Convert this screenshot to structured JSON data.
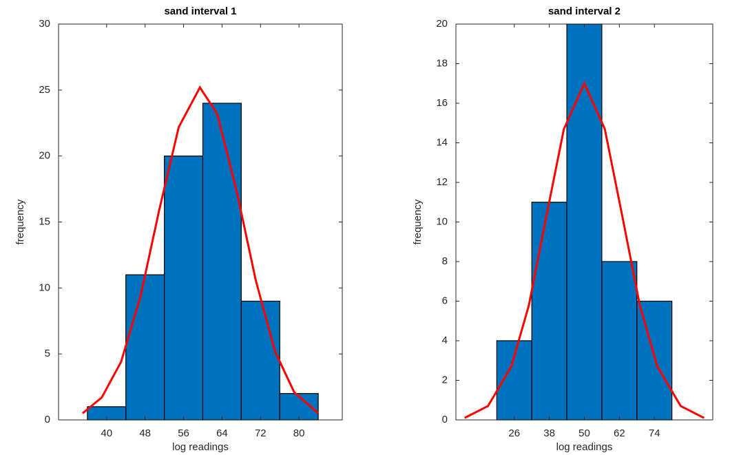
{
  "chart_data": [
    {
      "type": "histogram",
      "title": "sand interval 1",
      "x_label": "log readings",
      "y_label": "frequency",
      "bins": [
        36,
        44,
        52,
        60,
        68,
        76,
        84
      ],
      "values": [
        1,
        11,
        20,
        24,
        9,
        2
      ],
      "color": "#0072bd",
      "xlim": [
        30,
        89
      ],
      "ylim": [
        0,
        30
      ],
      "xticks": [
        40,
        48,
        56,
        64,
        72,
        80
      ],
      "yticks": [
        0,
        5,
        10,
        15,
        20,
        25,
        30
      ],
      "curve": {
        "color": "#ff0000",
        "x": [
          35,
          39,
          43,
          47,
          51,
          55,
          59.4,
          63,
          67,
          71,
          75,
          79,
          84
        ],
        "y": [
          0.5,
          1.7,
          4.4,
          9.3,
          16.0,
          22.2,
          25.2,
          23.2,
          17.4,
          10.6,
          5.2,
          2.1,
          0.5
        ]
      }
    },
    {
      "type": "histogram",
      "title": "sand interval 2",
      "x_label": "log readings",
      "y_label": "frequency",
      "bins": [
        20,
        32,
        44,
        56,
        68,
        80
      ],
      "values": [
        4,
        11,
        20,
        8,
        6
      ],
      "color": "#0072bd",
      "xlim": [
        6,
        94
      ],
      "ylim": [
        0,
        20
      ],
      "xticks": [
        26,
        38,
        50,
        62,
        74
      ],
      "yticks": [
        0,
        2,
        4,
        6,
        8,
        10,
        12,
        14,
        16,
        18,
        20
      ],
      "curve": {
        "color": "#ff0000",
        "x": [
          9,
          17,
          25,
          31,
          37,
          43,
          50,
          57,
          63,
          69,
          75,
          83,
          91
        ],
        "y": [
          0.1,
          0.7,
          2.7,
          5.8,
          10.3,
          14.7,
          17,
          14.7,
          10.3,
          5.8,
          2.7,
          0.7,
          0.1
        ]
      }
    }
  ]
}
